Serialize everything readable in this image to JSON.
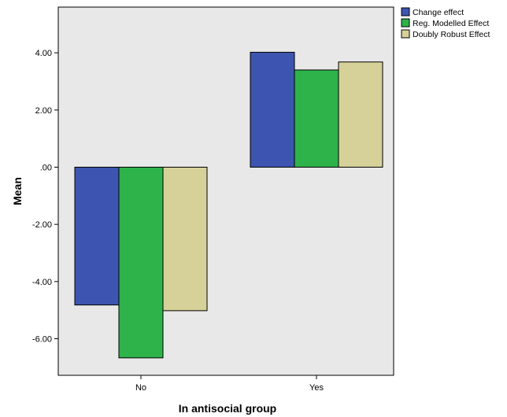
{
  "chart_data": {
    "type": "bar",
    "xlabel": "In antisocial group",
    "ylabel": "Mean",
    "categories": [
      "No",
      "Yes"
    ],
    "series": [
      {
        "name": "Change effect",
        "values": [
          -4.82,
          4.02
        ],
        "color": "#3d55b0"
      },
      {
        "name": "Reg. Modelled Effect",
        "values": [
          -6.67,
          3.4
        ],
        "color": "#2db34a"
      },
      {
        "name": "Doubly Robust Effect",
        "values": [
          -5.02,
          3.68
        ],
        "color": "#d6d198"
      }
    ],
    "ylim": [
      -7.28,
      5.6
    ],
    "yticks": [
      4.0,
      2.0,
      0.0,
      -2.0,
      -4.0,
      -6.0
    ],
    "ytick_labels": [
      "4.00",
      "2.00",
      ".00",
      "-2.00",
      "-4.00",
      "-6.00"
    ],
    "grid": false,
    "legend_position": "top-right",
    "plot_background": "#e8e8e8"
  }
}
